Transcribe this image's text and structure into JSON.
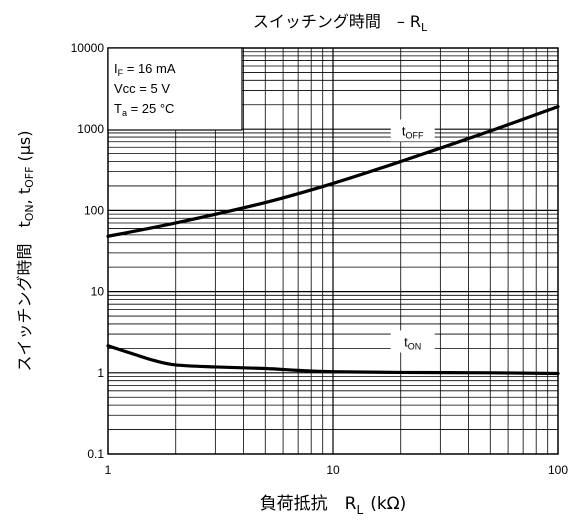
{
  "chart_data": {
    "type": "line",
    "title": "スイッチング時間　– R",
    "title_sub": "L",
    "xlabel": "負荷抵抗　R",
    "xlabel_sub": "L",
    "xlabel_unit": "(kΩ)",
    "ylabel_parts": [
      {
        "t": "スイッチング時間　t",
        "s": false
      },
      {
        "t": "ON",
        "s": true
      },
      {
        "t": ", t",
        "s": false
      },
      {
        "t": "OFF",
        "s": true
      },
      {
        "t": " (μs)",
        "s": false
      }
    ],
    "xscale": "log",
    "yscale": "log",
    "xlim": [
      1,
      100
    ],
    "ylim": [
      0.1,
      10000
    ],
    "x_ticks": [
      1,
      10,
      100
    ],
    "x_tick_labels": [
      "1",
      "10",
      "100"
    ],
    "y_ticks": [
      0.1,
      1,
      10,
      100,
      1000,
      10000
    ],
    "y_tick_labels": [
      "0.1",
      "1",
      "10",
      "100",
      "1000",
      "10000"
    ],
    "grid": true,
    "conditions": [
      [
        {
          "t": "I",
          "s": false
        },
        {
          "t": "F",
          "s": true
        },
        {
          "t": " = 16 mA",
          "s": false
        }
      ],
      [
        {
          "t": "Vcc = 5 V",
          "s": false
        }
      ],
      [
        {
          "t": "T",
          "s": false
        },
        {
          "t": "a",
          "s": true
        },
        {
          "t": " = 25 °C",
          "s": false
        }
      ]
    ],
    "series": [
      {
        "name": "t",
        "name_sub": "OFF",
        "x": [
          1,
          2,
          5,
          10,
          20,
          50,
          100
        ],
        "y": [
          48,
          70,
          125,
          215,
          400,
          950,
          1900
        ]
      },
      {
        "name": "t",
        "name_sub": "ON",
        "x": [
          1,
          1.3,
          1.6,
          2,
          3,
          5,
          7,
          10,
          20,
          50,
          100
        ],
        "y": [
          2.15,
          1.7,
          1.42,
          1.25,
          1.18,
          1.13,
          1.07,
          1.03,
          1.01,
          1.0,
          0.98
        ]
      }
    ]
  }
}
